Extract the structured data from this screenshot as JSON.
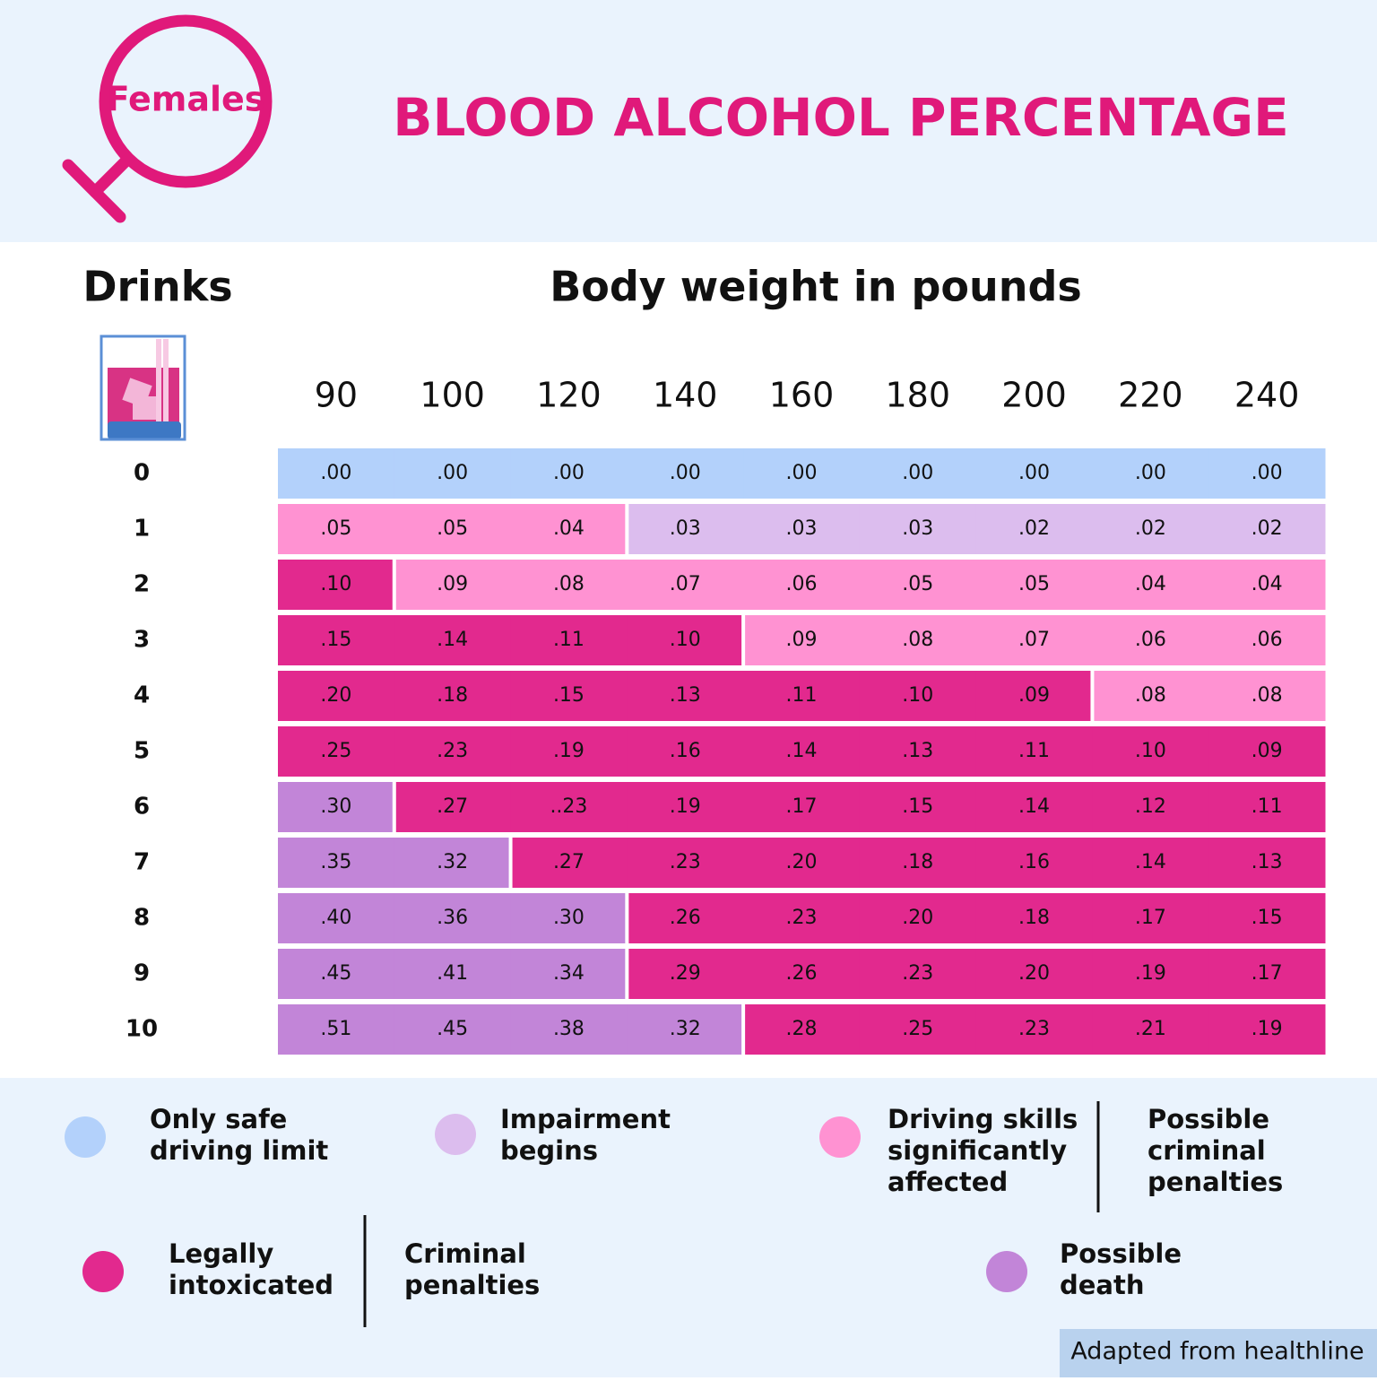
{
  "header": {
    "badge": "Females",
    "title": "BLOOD ALCOHOL PERCENTAGE"
  },
  "table": {
    "row_header": "Drinks",
    "column_header": "Body weight in pounds",
    "columns": [
      90,
      100,
      120,
      140,
      160,
      180,
      200,
      220,
      240
    ],
    "rows": [
      {
        "drinks": 0,
        "values": [
          ".00",
          ".00",
          ".00",
          ".00",
          ".00",
          ".00",
          ".00",
          ".00",
          ".00"
        ],
        "colors": [
          "#b3d1fb",
          "#b3d1fb",
          "#b3d1fb",
          "#b3d1fb",
          "#b3d1fb",
          "#b3d1fb",
          "#b3d1fb",
          "#b3d1fb",
          "#b3d1fb"
        ]
      },
      {
        "drinks": 1,
        "values": [
          ".05",
          ".05",
          ".04",
          ".03",
          ".03",
          ".03",
          ".02",
          ".02",
          ".02"
        ],
        "colors": [
          "#ff92d2",
          "#ff92d2",
          "#ff92d2",
          "#dcbdee",
          "#dcbdee",
          "#dcbdee",
          "#dcbdee",
          "#dcbdee",
          "#dcbdee"
        ]
      },
      {
        "drinks": 2,
        "values": [
          ".10",
          ".09",
          ".08",
          ".07",
          ".06",
          ".05",
          ".05",
          ".04",
          ".04"
        ],
        "colors": [
          "#e2298e",
          "#ff92d2",
          "#ff92d2",
          "#ff92d2",
          "#ff92d2",
          "#ff92d2",
          "#ff92d2",
          "#ff92d2",
          "#ff92d2"
        ]
      },
      {
        "drinks": 3,
        "values": [
          ".15",
          ".14",
          ".11",
          ".10",
          ".09",
          ".08",
          ".07",
          ".06",
          ".06"
        ],
        "colors": [
          "#e2298e",
          "#e2298e",
          "#e2298e",
          "#e2298e",
          "#ff92d2",
          "#ff92d2",
          "#ff92d2",
          "#ff92d2",
          "#ff92d2"
        ]
      },
      {
        "drinks": 4,
        "values": [
          ".20",
          ".18",
          ".15",
          ".13",
          ".11",
          ".10",
          ".09",
          ".08",
          ".08"
        ],
        "colors": [
          "#e2298e",
          "#e2298e",
          "#e2298e",
          "#e2298e",
          "#e2298e",
          "#e2298e",
          "#e2298e",
          "#ff92d2",
          "#ff92d2"
        ]
      },
      {
        "drinks": 5,
        "values": [
          ".25",
          ".23",
          ".19",
          ".16",
          ".14",
          ".13",
          ".11",
          ".10",
          ".09"
        ],
        "colors": [
          "#e2298e",
          "#e2298e",
          "#e2298e",
          "#e2298e",
          "#e2298e",
          "#e2298e",
          "#e2298e",
          "#e2298e",
          "#e2298e"
        ]
      },
      {
        "drinks": 6,
        "values": [
          ".30",
          ".27",
          "..23",
          ".19",
          ".17",
          ".15",
          ".14",
          ".12",
          ".11"
        ],
        "colors": [
          "#c285d8",
          "#e2298e",
          "#e2298e",
          "#e2298e",
          "#e2298e",
          "#e2298e",
          "#e2298e",
          "#e2298e",
          "#e2298e"
        ]
      },
      {
        "drinks": 7,
        "values": [
          ".35",
          ".32",
          ".27",
          ".23",
          ".20",
          ".18",
          ".16",
          ".14",
          ".13"
        ],
        "colors": [
          "#c285d8",
          "#c285d8",
          "#e2298e",
          "#e2298e",
          "#e2298e",
          "#e2298e",
          "#e2298e",
          "#e2298e",
          "#e2298e"
        ]
      },
      {
        "drinks": 8,
        "values": [
          ".40",
          ".36",
          ".30",
          ".26",
          ".23",
          ".20",
          ".18",
          ".17",
          ".15"
        ],
        "colors": [
          "#c285d8",
          "#c285d8",
          "#c285d8",
          "#e2298e",
          "#e2298e",
          "#e2298e",
          "#e2298e",
          "#e2298e",
          "#e2298e"
        ]
      },
      {
        "drinks": 9,
        "values": [
          ".45",
          ".41",
          ".34",
          ".29",
          ".26",
          ".23",
          ".20",
          ".19",
          ".17"
        ],
        "colors": [
          "#c285d8",
          "#c285d8",
          "#c285d8",
          "#e2298e",
          "#e2298e",
          "#e2298e",
          "#e2298e",
          "#e2298e",
          "#e2298e"
        ]
      },
      {
        "drinks": 10,
        "values": [
          ".51",
          ".45",
          ".38",
          ".32",
          ".28",
          ".25",
          ".23",
          ".21",
          ".19"
        ],
        "colors": [
          "#c285d8",
          "#c285d8",
          "#c285d8",
          "#c285d8",
          "#e2298e",
          "#e2298e",
          "#e2298e",
          "#e2298e",
          "#e2298e"
        ]
      }
    ]
  },
  "legend": [
    {
      "color": "#b3d1fb",
      "lines": [
        "Only safe",
        "driving limit"
      ]
    },
    {
      "color": "#dcbdee",
      "lines": [
        "Impairment",
        "begins"
      ]
    },
    {
      "color": "#ff92d2",
      "lines": [
        "Driving skills",
        "significantly",
        "affected"
      ],
      "note": [
        "Possible",
        "criminal",
        "penalties"
      ]
    },
    {
      "color": "#e2298e",
      "lines": [
        "Legally",
        "intoxicated"
      ],
      "note": [
        "Criminal",
        "penalties"
      ]
    },
    {
      "color": "#c285d8",
      "lines": [
        "Possible",
        "death"
      ]
    }
  ],
  "footer": "Adapted from healthline"
}
